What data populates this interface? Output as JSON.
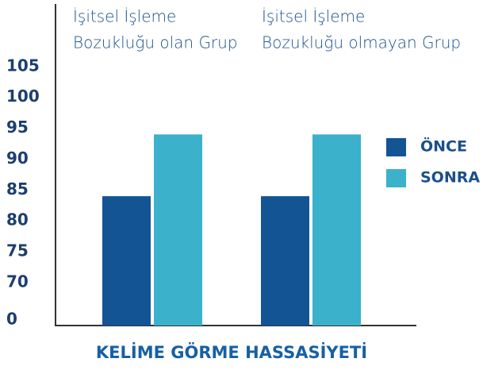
{
  "chart_data": {
    "type": "bar",
    "title": "KELİME GÖRME HASSASİYETİ",
    "categories": [
      [
        "İşitsel İşleme",
        "Bozukluğu olan Grup"
      ],
      [
        "İşitsel İşleme",
        "Bozukluğu olmayan Grup"
      ]
    ],
    "series": [
      {
        "name": "ÖNCE",
        "color": "#135494",
        "values": [
          84,
          84
        ]
      },
      {
        "name": "SONRA",
        "color": "#3bb1cb",
        "values": [
          94,
          94
        ]
      }
    ],
    "ylim": [
      0,
      106
    ],
    "axis_break": [
      0,
      70
    ],
    "yticks": [
      0,
      70,
      75,
      80,
      85,
      90,
      95,
      100,
      105
    ],
    "grid": false,
    "legend": "right"
  }
}
